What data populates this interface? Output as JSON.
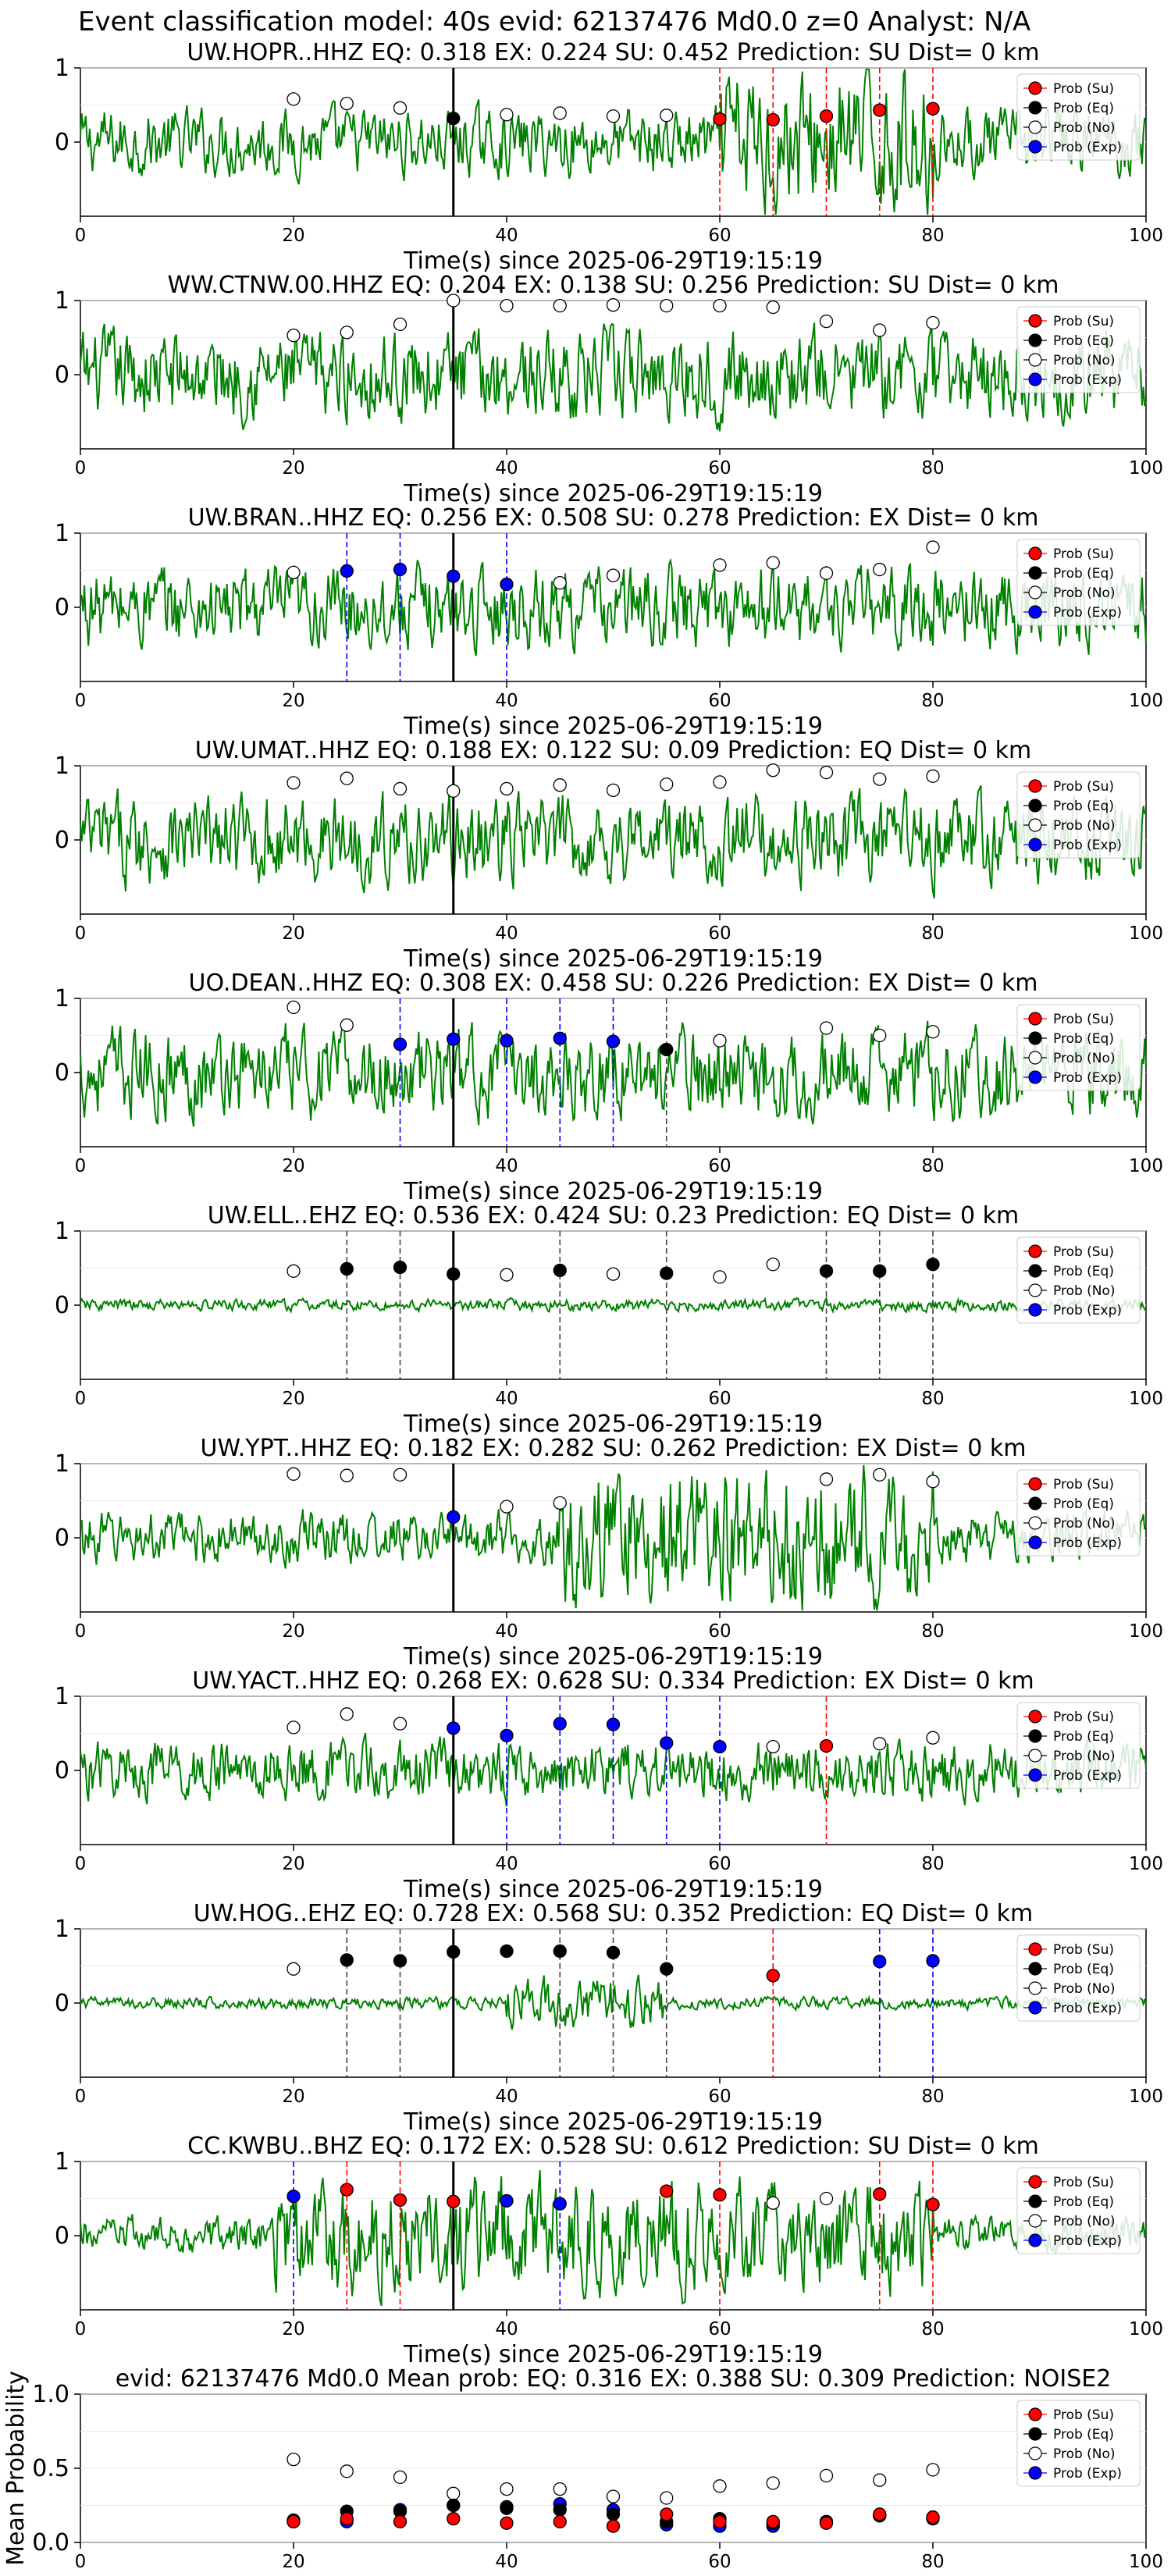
{
  "page_title": "Event classification model: 40s evid: 62137476 Md0.0 z=0 Analyst: N/A",
  "colors": {
    "su": "#ff0000",
    "eq": "#000000",
    "no": "#ffffff",
    "exp": "#0000ff",
    "waveform": "#008000"
  },
  "legend": [
    "Prob (Su)",
    "Prob (Eq)",
    "Prob (No)",
    "Prob (Exp)"
  ],
  "xlabel": "Time(s) since 2025-06-29T19:15:19",
  "x_ticks": [
    0,
    20,
    40,
    60,
    80,
    100
  ],
  "station_y_ticks": [
    "1",
    "0"
  ],
  "chart_data": [
    {
      "type": "scatter",
      "title": "UW.HOPR..HHZ   EQ: 0.318  EX: 0.224  SU: 0.452   Prediction: SU    Dist= 0 km",
      "xlim": [
        0,
        100
      ],
      "no": [
        [
          20,
          0.58
        ],
        [
          25,
          0.52
        ],
        [
          30,
          0.46
        ],
        [
          40,
          0.37
        ],
        [
          45,
          0.39
        ],
        [
          50,
          0.35
        ],
        [
          55,
          0.36
        ]
      ],
      "eq": [
        [
          35,
          0.32
        ]
      ],
      "su": [
        [
          60,
          0.31
        ],
        [
          65,
          0.3
        ],
        [
          70,
          0.35
        ],
        [
          75,
          0.43
        ],
        [
          80,
          0.45
        ]
      ],
      "exp": [],
      "lines": {
        "su": [
          60,
          65,
          70,
          75,
          80
        ],
        "eq": [],
        "exp": []
      },
      "noise": 0.45,
      "burst": [
        60,
        80
      ]
    },
    {
      "type": "scatter",
      "title": "WW.CTNW.00.HHZ   EQ: 0.204  EX: 0.138  SU: 0.256   Prediction: SU    Dist= 0 km",
      "xlim": [
        0,
        100
      ],
      "no": [
        [
          20,
          0.53
        ],
        [
          25,
          0.57
        ],
        [
          30,
          0.68
        ],
        [
          35,
          1.0
        ],
        [
          40,
          0.93
        ],
        [
          45,
          0.93
        ],
        [
          50,
          0.94
        ],
        [
          55,
          0.93
        ],
        [
          60,
          0.93
        ],
        [
          65,
          0.91
        ],
        [
          70,
          0.72
        ],
        [
          75,
          0.6
        ],
        [
          80,
          0.7
        ]
      ],
      "eq": [],
      "su": [],
      "exp": [],
      "lines": {
        "su": [],
        "eq": [],
        "exp": []
      },
      "noise": 0.6
    },
    {
      "type": "scatter",
      "title": "UW.BRAN..HHZ   EQ: 0.256  EX: 0.508  SU: 0.278   Prediction: EX    Dist= 0 km",
      "xlim": [
        0,
        100
      ],
      "no": [
        [
          20,
          0.47
        ],
        [
          45,
          0.33
        ],
        [
          50,
          0.43
        ],
        [
          60,
          0.57
        ],
        [
          65,
          0.6
        ],
        [
          70,
          0.46
        ],
        [
          75,
          0.51
        ],
        [
          80,
          0.81
        ]
      ],
      "eq": [],
      "su": [],
      "exp": [
        [
          25,
          0.49
        ],
        [
          30,
          0.51
        ],
        [
          35,
          0.42
        ],
        [
          40,
          0.31
        ]
      ],
      "lines": {
        "su": [],
        "eq": [],
        "exp": [
          25,
          30,
          40
        ]
      },
      "noise": 0.55
    },
    {
      "type": "scatter",
      "title": "UW.UMAT..HHZ   EQ: 0.188  EX: 0.122  SU: 0.09   Prediction: EQ    Dist= 0 km",
      "xlim": [
        0,
        100
      ],
      "no": [
        [
          20,
          0.77
        ],
        [
          25,
          0.83
        ],
        [
          30,
          0.69
        ],
        [
          35,
          0.66
        ],
        [
          40,
          0.69
        ],
        [
          45,
          0.74
        ],
        [
          50,
          0.67
        ],
        [
          55,
          0.75
        ],
        [
          60,
          0.78
        ],
        [
          65,
          0.94
        ],
        [
          70,
          0.91
        ],
        [
          75,
          0.82
        ],
        [
          80,
          0.86
        ]
      ],
      "eq": [],
      "su": [],
      "exp": [],
      "lines": {
        "su": [],
        "eq": [],
        "exp": []
      },
      "noise": 0.6
    },
    {
      "type": "scatter",
      "title": "UO.DEAN..HHZ   EQ: 0.308  EX: 0.458  SU: 0.226   Prediction: EX    Dist= 0 km",
      "xlim": [
        0,
        100
      ],
      "no": [
        [
          20,
          0.88
        ],
        [
          25,
          0.64
        ],
        [
          60,
          0.43
        ],
        [
          70,
          0.6
        ],
        [
          75,
          0.5
        ],
        [
          80,
          0.55
        ]
      ],
      "eq": [
        [
          55,
          0.31
        ]
      ],
      "su": [],
      "exp": [
        [
          30,
          0.38
        ],
        [
          35,
          0.45
        ],
        [
          40,
          0.43
        ],
        [
          45,
          0.46
        ],
        [
          50,
          0.42
        ]
      ],
      "lines": {
        "su": [],
        "eq": [
          55
        ],
        "exp": [
          30,
          40,
          45,
          50
        ]
      },
      "noise": 0.6
    },
    {
      "type": "scatter",
      "title": "UW.ELL..EHZ   EQ: 0.536  EX: 0.424  SU: 0.23   Prediction: EQ    Dist= 0 km",
      "xlim": [
        0,
        100
      ],
      "no": [
        [
          20,
          0.46
        ],
        [
          40,
          0.41
        ],
        [
          50,
          0.42
        ],
        [
          60,
          0.38
        ],
        [
          65,
          0.55
        ]
      ],
      "eq": [
        [
          25,
          0.49
        ],
        [
          30,
          0.51
        ],
        [
          35,
          0.42
        ],
        [
          45,
          0.47
        ],
        [
          55,
          0.43
        ],
        [
          70,
          0.46
        ],
        [
          75,
          0.46
        ],
        [
          80,
          0.55
        ]
      ],
      "su": [],
      "exp": [],
      "lines": {
        "su": [],
        "eq": [
          25,
          30,
          45,
          55,
          70,
          75,
          80
        ],
        "exp": []
      },
      "noise": 0.08
    },
    {
      "type": "scatter",
      "title": "UW.YPT..HHZ   EQ: 0.182  EX: 0.282  SU: 0.262   Prediction: EX    Dist= 0 km",
      "xlim": [
        0,
        100
      ],
      "no": [
        [
          20,
          0.86
        ],
        [
          25,
          0.84
        ],
        [
          30,
          0.85
        ],
        [
          40,
          0.42
        ],
        [
          45,
          0.47
        ],
        [
          70,
          0.79
        ],
        [
          75,
          0.85
        ],
        [
          80,
          0.76
        ]
      ],
      "eq": [],
      "su": [],
      "exp": [
        [
          35,
          0.28
        ]
      ],
      "lines": {
        "su": [],
        "eq": [],
        "exp": []
      },
      "noise": 0.35,
      "burst": [
        45,
        80
      ]
    },
    {
      "type": "scatter",
      "title": "UW.YACT..HHZ   EQ: 0.268  EX: 0.628  SU: 0.334   Prediction: EX    Dist= 0 km",
      "xlim": [
        0,
        100
      ],
      "no": [
        [
          20,
          0.58
        ],
        [
          25,
          0.76
        ],
        [
          30,
          0.63
        ],
        [
          65,
          0.32
        ],
        [
          75,
          0.36
        ],
        [
          80,
          0.44
        ]
      ],
      "eq": [],
      "su": [
        [
          70,
          0.33
        ]
      ],
      "exp": [
        [
          35,
          0.57
        ],
        [
          40,
          0.47
        ],
        [
          45,
          0.63
        ],
        [
          50,
          0.62
        ],
        [
          55,
          0.37
        ],
        [
          60,
          0.32
        ]
      ],
      "lines": {
        "su": [
          70
        ],
        "eq": [],
        "exp": [
          40,
          45,
          50,
          55,
          60
        ]
      },
      "noise": 0.4
    },
    {
      "type": "scatter",
      "title": "UW.HOG..EHZ   EQ: 0.728  EX: 0.568  SU: 0.352   Prediction: EQ    Dist= 0 km",
      "xlim": [
        0,
        100
      ],
      "no": [
        [
          20,
          0.46
        ]
      ],
      "eq": [
        [
          25,
          0.58
        ],
        [
          30,
          0.57
        ],
        [
          35,
          0.69
        ],
        [
          40,
          0.7
        ],
        [
          45,
          0.7
        ],
        [
          50,
          0.68
        ],
        [
          55,
          0.46
        ]
      ],
      "su": [
        [
          65,
          0.37
        ]
      ],
      "exp": [
        [
          75,
          0.56
        ],
        [
          80,
          0.57
        ]
      ],
      "lines": {
        "su": [
          65
        ],
        "eq": [
          25,
          30,
          45,
          50,
          55
        ],
        "exp": [
          75,
          80
        ]
      },
      "noise": 0.08,
      "burst": [
        40,
        55
      ]
    },
    {
      "type": "scatter",
      "title": "CC.KWBU..BHZ   EQ: 0.172  EX: 0.528  SU: 0.612   Prediction: SU    Dist= 0 km",
      "xlim": [
        0,
        100
      ],
      "no": [
        [
          65,
          0.44
        ],
        [
          70,
          0.5
        ]
      ],
      "eq": [],
      "su": [
        [
          25,
          0.62
        ],
        [
          30,
          0.48
        ],
        [
          35,
          0.46
        ],
        [
          55,
          0.6
        ],
        [
          60,
          0.55
        ],
        [
          75,
          0.56
        ],
        [
          80,
          0.42
        ]
      ],
      "exp": [
        [
          20,
          0.53
        ],
        [
          40,
          0.47
        ],
        [
          45,
          0.43
        ]
      ],
      "lines": {
        "su": [
          25,
          30,
          60,
          75,
          80
        ],
        "eq": [],
        "exp": [
          20,
          45
        ]
      },
      "noise": 0.25,
      "burst": [
        18,
        80
      ]
    },
    {
      "type": "scatter",
      "title": "evid: 62137476  Md0.0   Mean prob:   EQ: 0.316  EX: 0.388  SU: 0.309   Prediction: NOISE2",
      "xlim": [
        0,
        100
      ],
      "ylim": [
        0,
        1
      ],
      "ylabel": "Mean Probability",
      "y_ticks": [
        "0.0",
        "0.5",
        "1.0"
      ],
      "no": [
        [
          20,
          0.56
        ],
        [
          25,
          0.48
        ],
        [
          30,
          0.44
        ],
        [
          35,
          0.33
        ],
        [
          40,
          0.36
        ],
        [
          45,
          0.36
        ],
        [
          50,
          0.31
        ],
        [
          55,
          0.3
        ],
        [
          60,
          0.38
        ],
        [
          65,
          0.4
        ],
        [
          70,
          0.45
        ],
        [
          75,
          0.42
        ],
        [
          80,
          0.49
        ]
      ],
      "eq": [
        [
          20,
          0.15
        ],
        [
          25,
          0.21
        ],
        [
          30,
          0.21
        ],
        [
          35,
          0.25
        ],
        [
          40,
          0.23
        ],
        [
          45,
          0.22
        ],
        [
          50,
          0.19
        ],
        [
          55,
          0.14
        ],
        [
          60,
          0.16
        ],
        [
          65,
          0.13
        ],
        [
          70,
          0.14
        ],
        [
          75,
          0.18
        ],
        [
          80,
          0.17
        ]
      ],
      "su": [
        [
          20,
          0.14
        ],
        [
          25,
          0.16
        ],
        [
          30,
          0.14
        ],
        [
          35,
          0.16
        ],
        [
          40,
          0.13
        ],
        [
          45,
          0.14
        ],
        [
          50,
          0.11
        ],
        [
          55,
          0.19
        ],
        [
          60,
          0.14
        ],
        [
          65,
          0.14
        ],
        [
          70,
          0.13
        ],
        [
          75,
          0.19
        ],
        [
          80,
          0.17
        ]
      ],
      "exp": [
        [
          20,
          0.14
        ],
        [
          25,
          0.14
        ],
        [
          30,
          0.22
        ],
        [
          35,
          0.25
        ],
        [
          40,
          0.24
        ],
        [
          45,
          0.26
        ],
        [
          50,
          0.22
        ],
        [
          55,
          0.12
        ],
        [
          60,
          0.11
        ],
        [
          65,
          0.11
        ],
        [
          70,
          0.14
        ],
        [
          75,
          0.18
        ],
        [
          80,
          0.16
        ]
      ],
      "lines": {
        "su": [],
        "eq": [],
        "exp": []
      }
    }
  ]
}
